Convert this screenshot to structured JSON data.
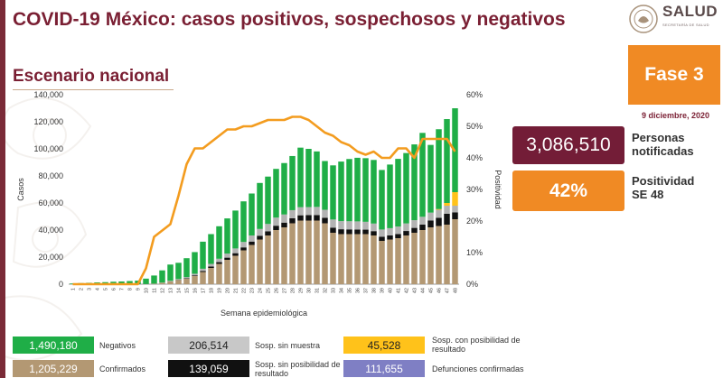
{
  "header": {
    "title": "COVID-19 México: casos positivos, sospechosos y negativos",
    "subtitle": "Escenario nacional",
    "logo_text": "SALUD",
    "logo_sub": "SECRETARÍA DE SALUD"
  },
  "side": {
    "phase": "Fase 3",
    "date": "9 diciembre, 2020",
    "notified_value": "3,086,510",
    "notified_label_1": "Personas",
    "notified_label_2": "notificadas",
    "positivity_value": "42%",
    "positivity_label_1": "Positividad",
    "positivity_label_2": "SE 48"
  },
  "legend": {
    "negativos_value": "1,490,180",
    "negativos_label": "Negativos",
    "confirmados_value": "1,205,229",
    "confirmados_label": "Confirmados",
    "sosp_sin_muestra_value": "206,514",
    "sosp_sin_muestra_label": "Sosp. sin muestra",
    "sosp_sin_pos_value": "139,059",
    "sosp_sin_pos_label_1": "Sosp. sin posibilidad de",
    "sosp_sin_pos_label_2": "resultado",
    "sosp_con_pos_value": "45,528",
    "sosp_con_pos_label_1": "Sosp. con posibilidad de",
    "sosp_con_pos_label_2": "resultado",
    "defunciones_value": "111,655",
    "defunciones_label": "Defunciones confirmadas"
  },
  "colors": {
    "negativos": "#1fae47",
    "confirmados": "#b39873",
    "sosp_sin_muestra": "#b3b3b3",
    "sosp_sin_posibilidad": "#111111",
    "sosp_con_posibilidad": "#ffc21a",
    "defunciones": "#7f7fc4",
    "positividad": "#f39c1f",
    "maroon": "#731d37",
    "orange": "#f08a24"
  },
  "chart_data": {
    "type": "bar",
    "stacked": true,
    "xlabel": "Semana epidemiológica",
    "ylabel": "Casos",
    "y2label": "Positividad",
    "ylim": [
      0,
      140000
    ],
    "y2lim": [
      0,
      60
    ],
    "yticks": [
      "0",
      "20,000",
      "40,000",
      "60,000",
      "80,000",
      "100,000",
      "120,000",
      "140,000"
    ],
    "y2ticks": [
      "0%",
      "10%",
      "20%",
      "30%",
      "40%",
      "50%",
      "60%"
    ],
    "categories": [
      "1",
      "2",
      "3",
      "4",
      "5",
      "6",
      "7",
      "8",
      "9",
      "10",
      "11",
      "12",
      "13",
      "14",
      "15",
      "16",
      "17",
      "18",
      "19",
      "20",
      "21",
      "22",
      "23",
      "24",
      "25",
      "26",
      "27",
      "28",
      "29",
      "30",
      "31",
      "32",
      "33",
      "34",
      "35",
      "36",
      "37",
      "38",
      "39",
      "40",
      "41",
      "42",
      "43",
      "44",
      "45",
      "46",
      "47",
      "48"
    ],
    "series": [
      {
        "name": "Confirmados",
        "values": [
          0,
          0,
          0,
          0,
          0,
          0,
          0,
          0,
          0,
          100,
          300,
          1000,
          2000,
          3000,
          4000,
          6000,
          9000,
          12000,
          15000,
          18000,
          21000,
          25000,
          29000,
          33000,
          36000,
          40000,
          42000,
          45000,
          47000,
          47000,
          47000,
          45000,
          38000,
          37000,
          37000,
          37000,
          37000,
          36000,
          32000,
          33000,
          34000,
          36000,
          38000,
          40000,
          42000,
          43000,
          44000,
          48000
        ]
      },
      {
        "name": "Sosp. sin posibilidad de resultado",
        "values": [
          0,
          0,
          0,
          0,
          0,
          0,
          0,
          0,
          0,
          0,
          0,
          0,
          100,
          200,
          300,
          500,
          800,
          1000,
          1300,
          1600,
          1900,
          2200,
          2500,
          2800,
          3000,
          3200,
          3500,
          3700,
          3900,
          4000,
          4100,
          4000,
          3800,
          3600,
          3500,
          3400,
          3300,
          3200,
          3000,
          3000,
          3100,
          3300,
          3600,
          4000,
          5000,
          6000,
          8000,
          5000
        ]
      },
      {
        "name": "Sosp. sin muestra",
        "values": [
          0,
          0,
          0,
          0,
          0,
          0,
          0,
          0,
          0,
          0,
          100,
          200,
          400,
          600,
          900,
          1200,
          1600,
          2000,
          2500,
          3000,
          3500,
          4000,
          4500,
          5000,
          5500,
          6000,
          6000,
          6000,
          6000,
          6000,
          6000,
          6000,
          6000,
          6000,
          6000,
          6000,
          5800,
          5600,
          5400,
          5400,
          5500,
          5600,
          5700,
          5800,
          5900,
          6000,
          6000,
          5000
        ]
      },
      {
        "name": "Sosp. con posibilidad de resultado",
        "values": [
          0,
          0,
          0,
          0,
          0,
          0,
          0,
          0,
          0,
          0,
          0,
          0,
          0,
          0,
          0,
          0,
          0,
          0,
          0,
          0,
          0,
          0,
          0,
          0,
          0,
          0,
          0,
          0,
          0,
          0,
          0,
          0,
          0,
          0,
          0,
          0,
          0,
          0,
          0,
          0,
          0,
          0,
          0,
          0,
          0,
          500,
          2000,
          10000
        ]
      },
      {
        "name": "Negativos",
        "values": [
          500,
          800,
          1000,
          1300,
          1500,
          1800,
          2000,
          2300,
          2600,
          4000,
          6000,
          9000,
          12000,
          12000,
          14000,
          16000,
          20000,
          22000,
          24000,
          26000,
          28000,
          30000,
          31000,
          34000,
          35000,
          36000,
          38000,
          40000,
          44000,
          43000,
          41000,
          36000,
          40000,
          44000,
          46000,
          47000,
          47000,
          47000,
          44000,
          47000,
          50000,
          52000,
          56000,
          62000,
          50000,
          59000,
          62000,
          62000
        ]
      }
    ],
    "line": {
      "name": "Positividad",
      "values": [
        0,
        0,
        0,
        0,
        0,
        0,
        0,
        0,
        0,
        5,
        15,
        17,
        19,
        28,
        38,
        43,
        43,
        45,
        47,
        49,
        49,
        50,
        50,
        51,
        52,
        52,
        52,
        53,
        53,
        52,
        50,
        48,
        47,
        45,
        44,
        42,
        41,
        42,
        40,
        40,
        43,
        43,
        40,
        46,
        46,
        46,
        46,
        42
      ]
    }
  }
}
